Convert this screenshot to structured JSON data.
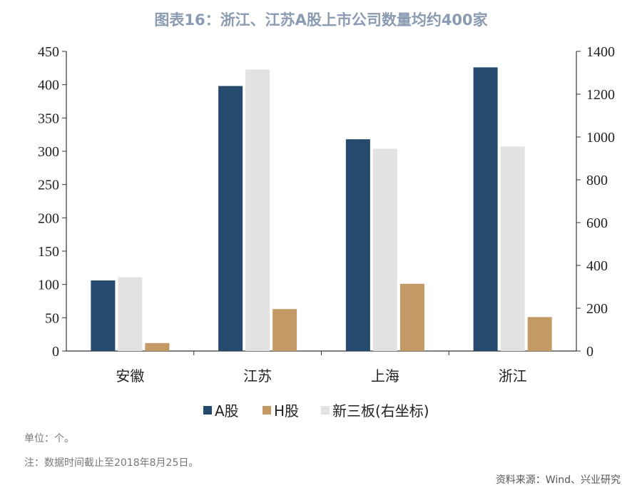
{
  "title": "图表16：浙江、江苏A股上市公司数量均约400家",
  "notes": {
    "unit": "单位：个。",
    "date": "注：数据时间截止至2018年8月25日。",
    "source": "资料来源：Wind、兴业研究"
  },
  "chart_data": {
    "type": "bar",
    "title": "图表16：浙江、江苏A股上市公司数量均约400家",
    "categories": [
      "安徽",
      "江苏",
      "上海",
      "浙江"
    ],
    "series": [
      {
        "name": "A股",
        "axis": "left",
        "color": "#264a6e",
        "values": [
          106,
          398,
          318,
          426
        ]
      },
      {
        "name": "新三板(右坐标)",
        "axis": "right",
        "color": "#e2e2e2",
        "values": [
          345,
          1315,
          945,
          955
        ]
      },
      {
        "name": "H股",
        "axis": "left",
        "color": "#c39a66",
        "values": [
          12,
          63,
          101,
          51
        ]
      }
    ],
    "legend_order": [
      "A股",
      "H股",
      "新三板(右坐标)"
    ],
    "legend_placement": "bottom",
    "y_left": {
      "lim": [
        0,
        450
      ],
      "ticks": [
        0,
        50,
        100,
        150,
        200,
        250,
        300,
        350,
        400,
        450
      ]
    },
    "y_right": {
      "lim": [
        0,
        1400
      ],
      "ticks": [
        0,
        200,
        400,
        600,
        800,
        1000,
        1200,
        1400
      ]
    },
    "grid": false
  }
}
